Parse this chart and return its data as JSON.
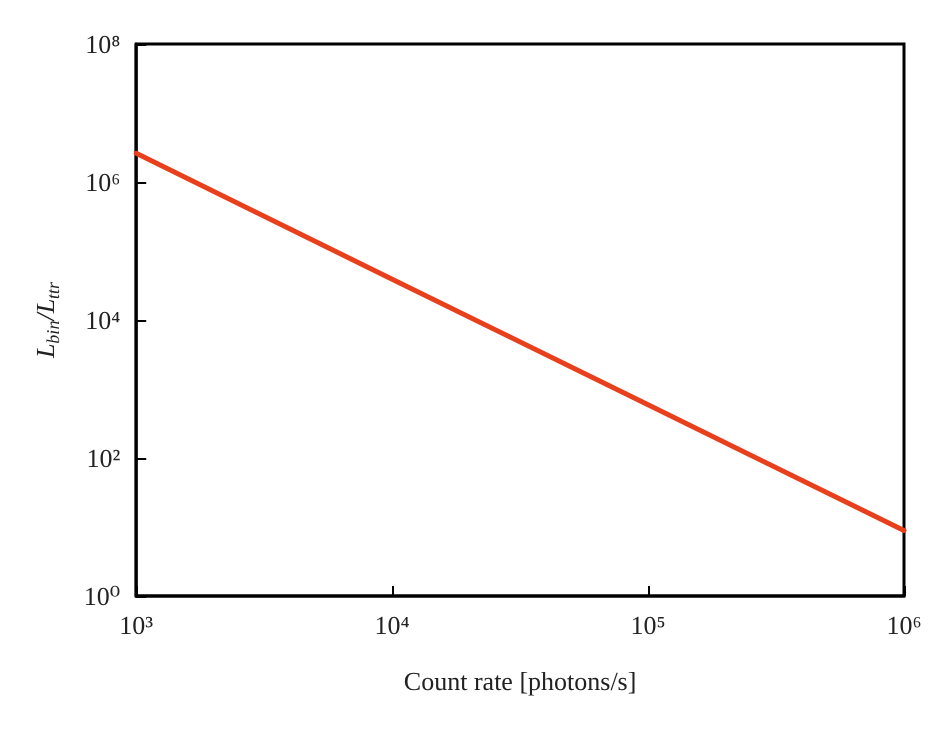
{
  "chart_data": {
    "type": "line",
    "xlabel": "Count rate [photons/s]",
    "ylabel": "L$_{bin}$/L$_{ttr}$",
    "x": [
      1000,
      10000,
      100000,
      1000000
    ],
    "series": [
      {
        "color": "#e8401c",
        "values": [
          2600000,
          39000,
          590,
          8.9
        ]
      }
    ],
    "log": "xy",
    "xlim": [
      1000,
      1000000
    ],
    "ylim": [
      1,
      100000000
    ],
    "xticks": [
      {
        "value": 1000,
        "label": "10³"
      },
      {
        "value": 10000,
        "label": "10⁴"
      },
      {
        "value": 100000,
        "label": "10⁵"
      },
      {
        "value": 1000000,
        "label": "10⁶"
      }
    ],
    "yticks": [
      {
        "value": 1,
        "label": "10⁰"
      },
      {
        "value": 100,
        "label": "10²"
      },
      {
        "value": 10000,
        "label": "10⁴"
      },
      {
        "value": 1000000,
        "label": "10⁶"
      },
      {
        "value": 100000000,
        "label": "10⁸"
      }
    ],
    "grid": false,
    "marker": "none",
    "line_style": "solid"
  }
}
